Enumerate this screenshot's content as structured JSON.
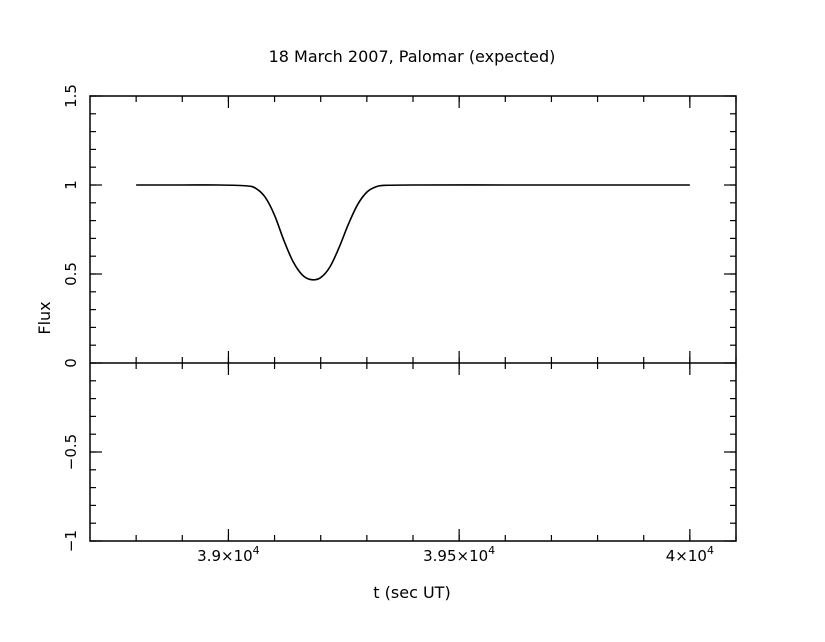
{
  "chart_data": {
    "type": "line",
    "title": "18 March 2007, Palomar (expected)",
    "xlabel": "t (sec UT)",
    "ylabel": "Flux",
    "xlim": [
      38700,
      40100
    ],
    "ylim": [
      -1,
      1.5
    ],
    "x_ticks": [
      {
        "value": 39000,
        "mantissa": "3.9",
        "exponent": "4"
      },
      {
        "value": 39500,
        "mantissa": "3.95",
        "exponent": "4"
      },
      {
        "value": 40000,
        "mantissa": "4",
        "exponent": "4"
      }
    ],
    "x_tick_base": "10",
    "y_ticks": [
      {
        "value": -1,
        "label": "−1"
      },
      {
        "value": -0.5,
        "label": "−0.5"
      },
      {
        "value": 0,
        "label": "0"
      },
      {
        "value": 0.5,
        "label": "0.5"
      },
      {
        "value": 1,
        "label": "1"
      },
      {
        "value": 1.5,
        "label": "1.5"
      }
    ],
    "zero_line": true,
    "grid": false,
    "series": [
      {
        "color": "#000000",
        "points": [
          [
            38800,
            1.0
          ],
          [
            38900,
            1.0
          ],
          [
            38980,
            1.0
          ],
          [
            39040,
            0.995
          ],
          [
            39060,
            0.98
          ],
          [
            39080,
            0.93
          ],
          [
            39100,
            0.83
          ],
          [
            39120,
            0.69
          ],
          [
            39140,
            0.57
          ],
          [
            39160,
            0.495
          ],
          [
            39180,
            0.468
          ],
          [
            39200,
            0.48
          ],
          [
            39220,
            0.54
          ],
          [
            39240,
            0.65
          ],
          [
            39260,
            0.78
          ],
          [
            39280,
            0.89
          ],
          [
            39300,
            0.96
          ],
          [
            39320,
            0.99
          ],
          [
            39340,
            0.998
          ],
          [
            39400,
            1.0
          ],
          [
            39600,
            1.0
          ],
          [
            39800,
            1.0
          ],
          [
            40000,
            1.0
          ]
        ]
      }
    ]
  }
}
